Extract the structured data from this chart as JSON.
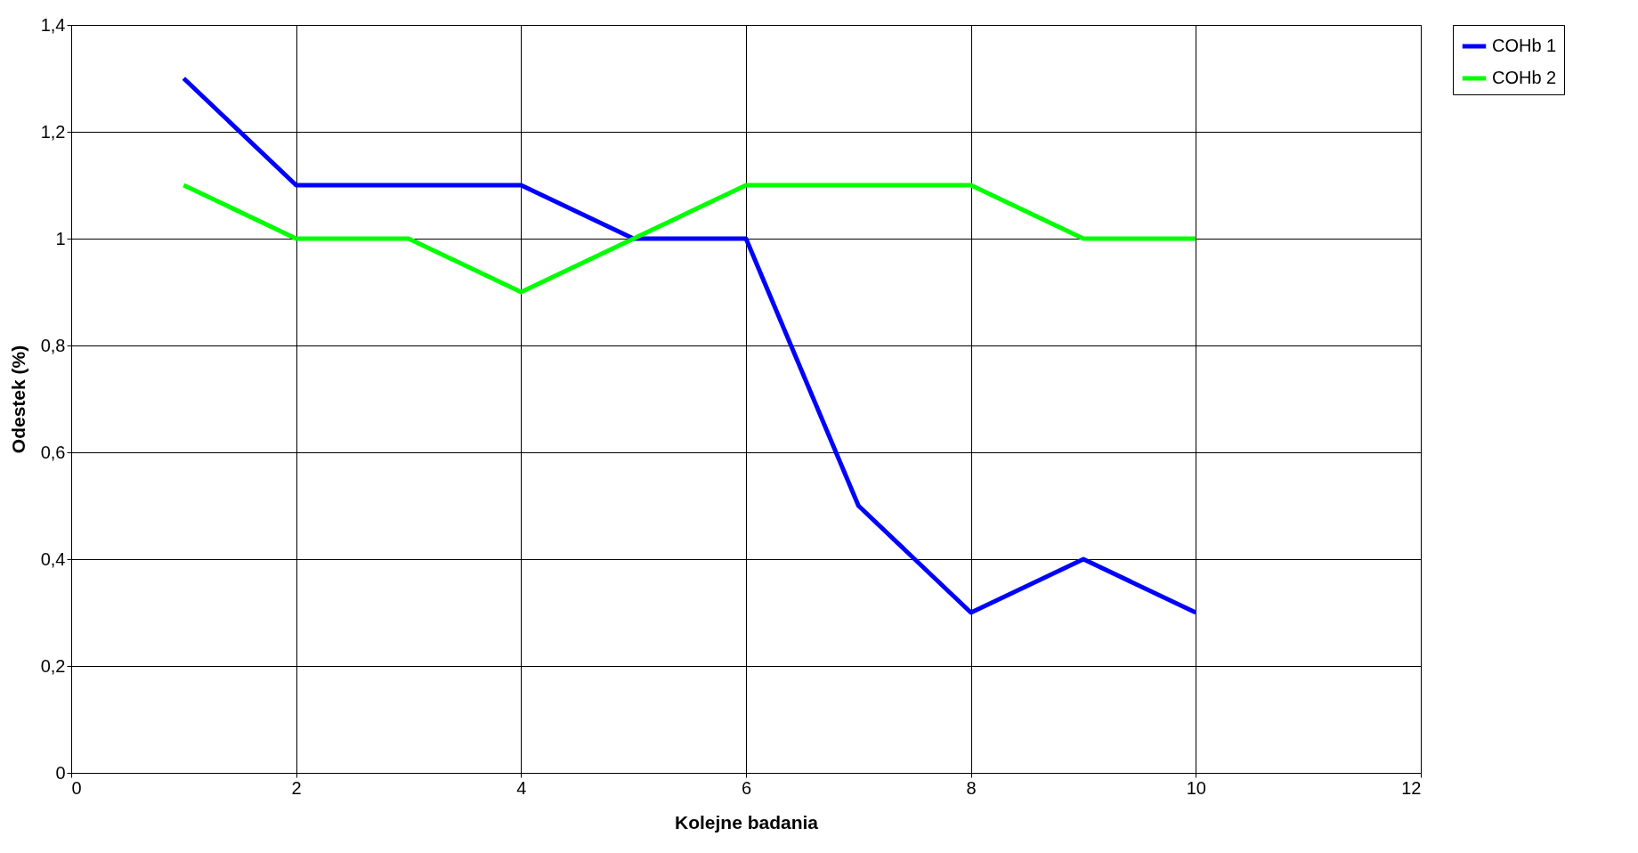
{
  "chart_data": {
    "type": "line",
    "xlabel": "Kolejne badania",
    "ylabel": "Odestek (%)",
    "x": [
      1,
      2,
      3,
      4,
      5,
      6,
      7,
      8,
      9,
      10
    ],
    "series": [
      {
        "name": "COHb 1",
        "color": "#0000ff",
        "values": [
          1.3,
          1.1,
          1.1,
          1.1,
          1.0,
          1.0,
          0.5,
          0.3,
          0.4,
          0.3
        ]
      },
      {
        "name": "COHb 2",
        "color": "#00ff00",
        "values": [
          1.1,
          1.0,
          1.0,
          0.9,
          1.0,
          1.1,
          1.1,
          1.1,
          1.0,
          1.0
        ]
      }
    ],
    "xlim": [
      0,
      12
    ],
    "xticks": [
      0,
      2,
      4,
      6,
      8,
      10,
      12
    ],
    "ylim": [
      0,
      1.4
    ],
    "yticks": [
      0,
      {
        "value": 0.2,
        "label": "0,2"
      },
      {
        "value": 0.4,
        "label": "0,4"
      },
      {
        "value": 0.6,
        "label": "0,6"
      },
      {
        "value": 0.8,
        "label": "0,8"
      },
      1,
      {
        "value": 1.2,
        "label": "1,2"
      },
      {
        "value": 1.4,
        "label": "1,4"
      }
    ],
    "grid": true,
    "legend": "right",
    "marker": "none",
    "line_style": "solid"
  }
}
